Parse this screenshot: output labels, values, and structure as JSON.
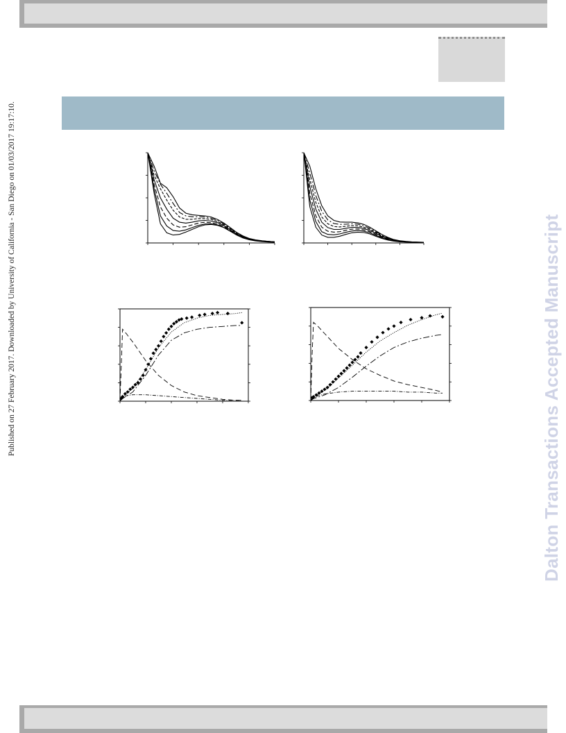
{
  "header": {},
  "footer": {},
  "sidebar_text": "Published on 27 February 2017. Downloaded by University of California - San Diego on 01/03/2017 19:17:10.",
  "watermark": "Dalton Transactions Accepted Manuscript",
  "chart_data": [
    {
      "type": "line",
      "title": "",
      "xlabel": "",
      "ylabel": "",
      "grid": false,
      "xlim": [
        0,
        10
      ],
      "ylim": [
        0,
        4
      ],
      "x": [
        0,
        0.5,
        1,
        1.5,
        2,
        2.5,
        3,
        3.5,
        4,
        4.5,
        5,
        5.5,
        6,
        6.5,
        7,
        7.5,
        8,
        8.5,
        9,
        9.5,
        10
      ],
      "series": [
        {
          "values": [
            4.0,
            2.2,
            0.85,
            0.45,
            0.35,
            0.38,
            0.48,
            0.6,
            0.72,
            0.8,
            0.82,
            0.78,
            0.68,
            0.52,
            0.35,
            0.22,
            0.14,
            0.09,
            0.06,
            0.04,
            0.03
          ]
        },
        {
          "values": [
            4.0,
            2.4,
            1.2,
            0.75,
            0.55,
            0.52,
            0.58,
            0.68,
            0.78,
            0.84,
            0.85,
            0.8,
            0.68,
            0.52,
            0.36,
            0.23,
            0.15,
            0.1,
            0.07,
            0.05,
            0.04
          ]
        },
        {
          "values": [
            4.0,
            2.6,
            1.6,
            1.1,
            0.8,
            0.7,
            0.72,
            0.8,
            0.88,
            0.92,
            0.9,
            0.84,
            0.72,
            0.55,
            0.38,
            0.25,
            0.16,
            0.11,
            0.08,
            0.06,
            0.04
          ]
        },
        {
          "values": [
            4.0,
            2.8,
            2.0,
            1.5,
            1.1,
            0.92,
            0.88,
            0.92,
            0.98,
            1.0,
            0.97,
            0.9,
            0.76,
            0.58,
            0.4,
            0.27,
            0.17,
            0.12,
            0.08,
            0.06,
            0.05
          ]
        },
        {
          "values": [
            4.0,
            3.0,
            2.4,
            1.9,
            1.45,
            1.15,
            1.05,
            1.05,
            1.08,
            1.08,
            1.04,
            0.95,
            0.8,
            0.62,
            0.43,
            0.28,
            0.18,
            0.12,
            0.09,
            0.07,
            0.05
          ]
        },
        {
          "values": [
            4.0,
            3.2,
            2.6,
            2.2,
            1.75,
            1.35,
            1.2,
            1.16,
            1.16,
            1.15,
            1.1,
            1.0,
            0.84,
            0.65,
            0.45,
            0.3,
            0.19,
            0.13,
            0.09,
            0.07,
            0.05
          ]
        },
        {
          "values": [
            4.0,
            3.4,
            2.65,
            2.45,
            2.05,
            1.55,
            1.32,
            1.25,
            1.22,
            1.2,
            1.15,
            1.04,
            0.88,
            0.68,
            0.47,
            0.31,
            0.2,
            0.14,
            0.1,
            0.07,
            0.05
          ]
        }
      ]
    },
    {
      "type": "line",
      "title": "",
      "xlabel": "",
      "ylabel": "",
      "grid": false,
      "xlim": [
        0,
        10
      ],
      "ylim": [
        0,
        4
      ],
      "x": [
        0,
        0.5,
        1,
        1.5,
        2,
        2.5,
        3,
        3.5,
        4,
        4.5,
        5,
        5.5,
        6,
        6.5,
        7,
        7.5,
        8,
        8.5,
        9,
        9.5,
        10
      ],
      "series": [
        {
          "values": [
            4.0,
            1.6,
            0.7,
            0.35,
            0.25,
            0.25,
            0.3,
            0.38,
            0.45,
            0.48,
            0.46,
            0.4,
            0.3,
            0.2,
            0.13,
            0.08,
            0.05,
            0.04,
            0.03,
            0.02,
            0.02
          ]
        },
        {
          "values": [
            4.0,
            1.9,
            0.95,
            0.5,
            0.38,
            0.36,
            0.4,
            0.47,
            0.53,
            0.55,
            0.52,
            0.45,
            0.34,
            0.23,
            0.15,
            0.09,
            0.06,
            0.04,
            0.03,
            0.02,
            0.02
          ]
        },
        {
          "values": [
            4.0,
            2.2,
            1.2,
            0.7,
            0.52,
            0.48,
            0.5,
            0.56,
            0.61,
            0.62,
            0.58,
            0.5,
            0.38,
            0.26,
            0.17,
            0.1,
            0.07,
            0.05,
            0.03,
            0.03,
            0.02
          ]
        },
        {
          "values": [
            4.0,
            2.5,
            1.5,
            0.92,
            0.68,
            0.6,
            0.6,
            0.65,
            0.69,
            0.69,
            0.64,
            0.55,
            0.42,
            0.29,
            0.19,
            0.12,
            0.08,
            0.05,
            0.04,
            0.03,
            0.02
          ]
        },
        {
          "values": [
            4.0,
            2.8,
            1.8,
            1.15,
            0.85,
            0.73,
            0.71,
            0.74,
            0.77,
            0.76,
            0.7,
            0.6,
            0.46,
            0.32,
            0.21,
            0.13,
            0.09,
            0.06,
            0.04,
            0.03,
            0.03
          ]
        },
        {
          "values": [
            4.0,
            3.1,
            2.1,
            1.4,
            1.02,
            0.86,
            0.82,
            0.83,
            0.85,
            0.83,
            0.76,
            0.65,
            0.5,
            0.35,
            0.23,
            0.14,
            0.09,
            0.06,
            0.04,
            0.03,
            0.03
          ]
        },
        {
          "values": [
            4.0,
            3.4,
            2.4,
            1.65,
            1.2,
            1.0,
            0.93,
            0.92,
            0.92,
            0.89,
            0.82,
            0.7,
            0.54,
            0.38,
            0.25,
            0.15,
            0.1,
            0.07,
            0.05,
            0.04,
            0.03
          ]
        }
      ]
    },
    {
      "type": "scatter",
      "title": "",
      "xlabel": "",
      "ylabel": "",
      "grid": false,
      "xlim": [
        0,
        100
      ],
      "ylim": [
        0,
        100
      ],
      "points": {
        "x": [
          1,
          2,
          4,
          6,
          8,
          10,
          12,
          14,
          16,
          18,
          20,
          22,
          24,
          26,
          28,
          30,
          32,
          34,
          36,
          38,
          40,
          42,
          44,
          46,
          48,
          52,
          56,
          62,
          66,
          72,
          76,
          84,
          95
        ],
        "y": [
          3,
          5,
          8,
          10,
          13,
          15,
          18,
          20,
          24,
          28,
          34,
          40,
          46,
          52,
          56,
          60,
          65,
          70,
          74,
          78,
          81,
          84,
          86,
          88,
          89,
          90,
          91,
          93,
          94,
          95,
          96,
          95,
          85
        ]
      },
      "series": [
        {
          "style": "dotted",
          "x": [
            0,
            10,
            20,
            30,
            40,
            50,
            60,
            70,
            80,
            90,
            95
          ],
          "values": [
            2,
            14,
            34,
            58,
            75,
            85,
            90,
            93,
            94,
            95,
            96
          ]
        },
        {
          "style": "long-dash",
          "x": [
            0,
            10,
            20,
            30,
            40,
            50,
            60,
            70,
            80,
            90,
            95
          ],
          "values": [
            1,
            10,
            28,
            50,
            66,
            74,
            78,
            80,
            81,
            82,
            82
          ]
        },
        {
          "style": "dashed",
          "x": [
            0,
            1,
            2,
            5,
            10,
            15,
            20,
            30,
            40,
            50,
            60,
            70,
            80,
            90,
            95
          ],
          "values": [
            0,
            40,
            78,
            73,
            64,
            54,
            44,
            28,
            17,
            10,
            6,
            4,
            2,
            1,
            1
          ]
        },
        {
          "style": "dash-dot",
          "x": [
            0,
            2,
            5,
            10,
            20,
            30,
            40,
            50,
            60,
            70,
            80,
            90,
            95
          ],
          "values": [
            0,
            3,
            6,
            7,
            7,
            6,
            5,
            4,
            3,
            2,
            1,
            1,
            1
          ]
        }
      ]
    },
    {
      "type": "scatter",
      "title": "",
      "xlabel": "",
      "ylabel": "",
      "grid": false,
      "xlim": [
        0,
        100
      ],
      "ylim": [
        0,
        100
      ],
      "points": {
        "x": [
          1,
          2,
          4,
          6,
          8,
          10,
          12,
          14,
          16,
          18,
          20,
          22,
          24,
          26,
          28,
          30,
          32,
          34,
          36,
          40,
          44,
          48,
          52,
          56,
          60,
          65,
          72,
          80,
          86,
          95
        ],
        "y": [
          3,
          4,
          6,
          8,
          10,
          12,
          14,
          17,
          20,
          23,
          26,
          29,
          32,
          35,
          38,
          41,
          44,
          47,
          51,
          57,
          63,
          68,
          73,
          77,
          80,
          84,
          87,
          89,
          91,
          90
        ]
      },
      "series": [
        {
          "style": "dotted",
          "x": [
            0,
            10,
            20,
            30,
            40,
            50,
            60,
            70,
            80,
            90,
            95
          ],
          "values": [
            2,
            11,
            24,
            38,
            52,
            64,
            73,
            81,
            87,
            92,
            94
          ]
        },
        {
          "style": "long-dash",
          "x": [
            0,
            10,
            20,
            30,
            40,
            50,
            60,
            70,
            80,
            90,
            95
          ],
          "values": [
            1,
            6,
            14,
            25,
            37,
            48,
            57,
            63,
            67,
            70,
            71
          ]
        },
        {
          "style": "dashed",
          "x": [
            0,
            1,
            2,
            5,
            10,
            15,
            20,
            30,
            40,
            50,
            60,
            70,
            80,
            90,
            95
          ],
          "values": [
            0,
            50,
            84,
            80,
            72,
            64,
            56,
            44,
            34,
            27,
            21,
            17,
            14,
            11,
            9
          ]
        },
        {
          "style": "dash-dot",
          "x": [
            0,
            2,
            5,
            10,
            20,
            30,
            40,
            50,
            60,
            70,
            80,
            90,
            95
          ],
          "values": [
            0,
            2,
            5,
            7,
            9,
            10,
            10,
            10,
            10,
            9,
            9,
            8,
            8
          ]
        }
      ]
    }
  ]
}
